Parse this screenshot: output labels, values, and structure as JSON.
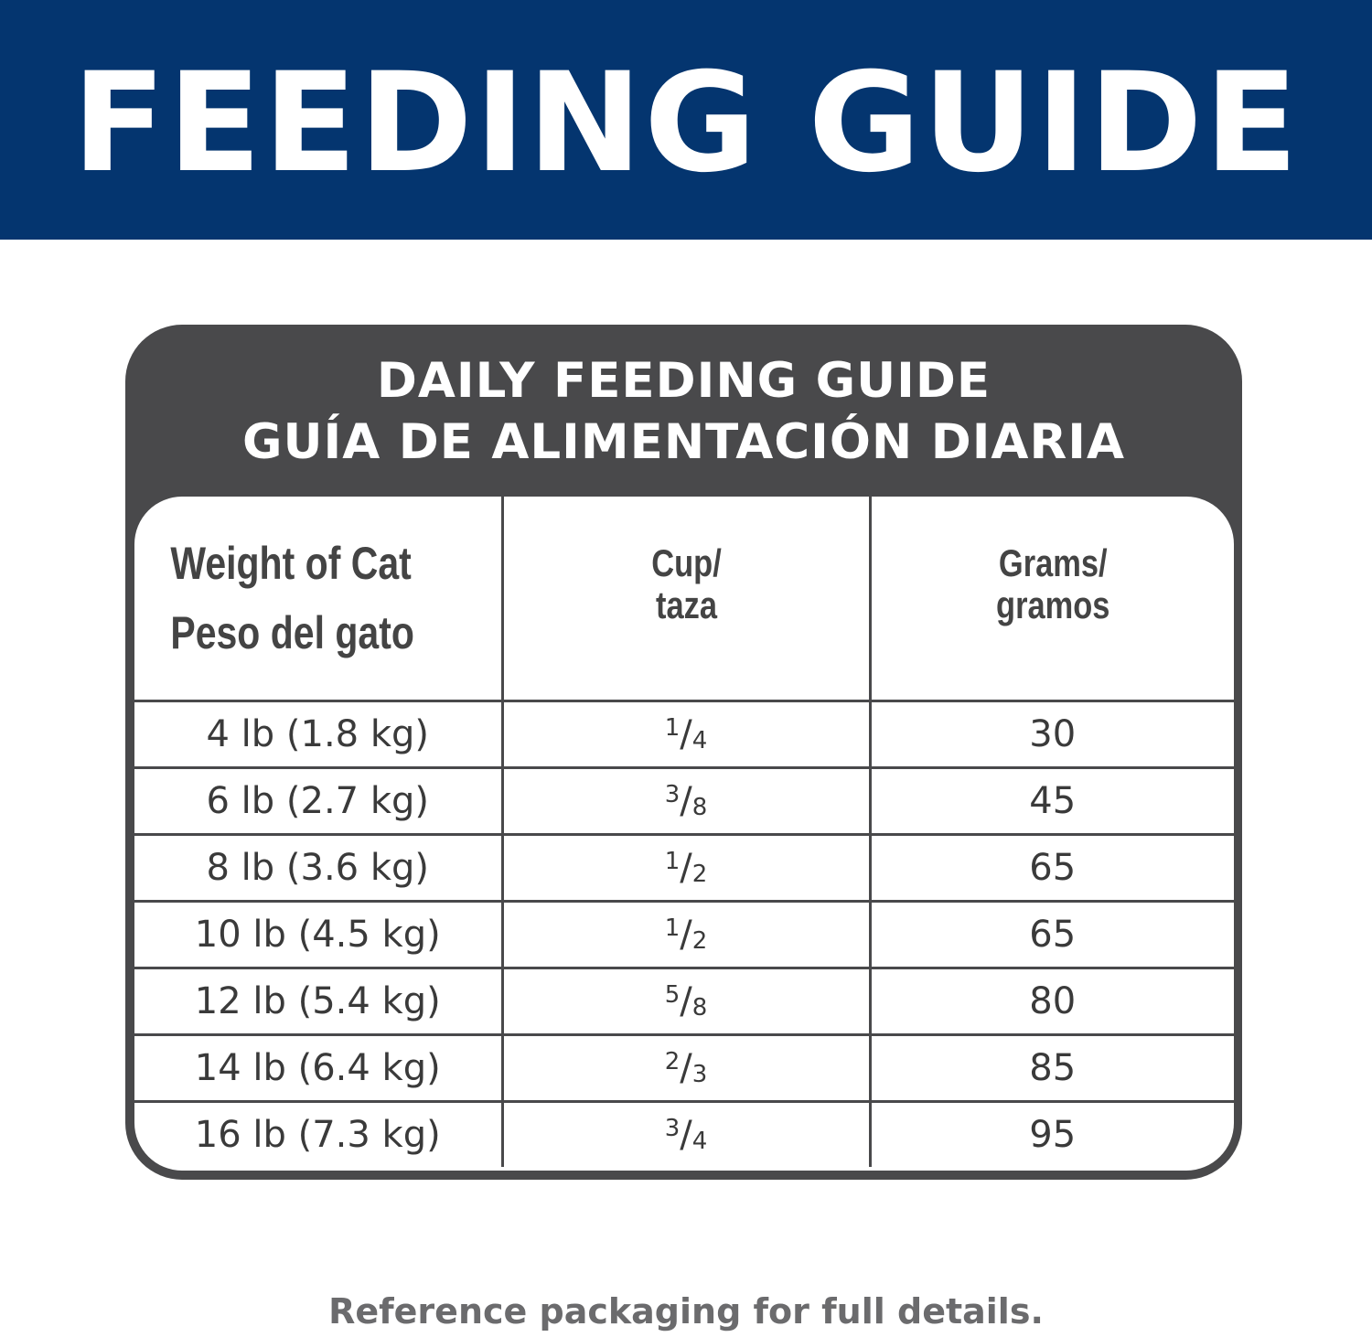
{
  "banner": {
    "title": "FEEDING GUIDE"
  },
  "card": {
    "title_en": "DAILY FEEDING GUIDE",
    "title_es": "GUÍA DE ALIMENTACIÓN DIARIA",
    "columns": [
      {
        "line1": "Weight of Cat",
        "line2": "Peso del gato"
      },
      {
        "line1": "Cup/",
        "line2": "taza"
      },
      {
        "line1": "Grams/",
        "line2": "gramos"
      }
    ],
    "rows": [
      {
        "weight": "4 lb (1.8 kg)",
        "cup_num": "1",
        "cup_den": "4",
        "grams": "30"
      },
      {
        "weight": "6 lb (2.7 kg)",
        "cup_num": "3",
        "cup_den": "8",
        "grams": "45"
      },
      {
        "weight": "8 lb (3.6 kg)",
        "cup_num": "1",
        "cup_den": "2",
        "grams": "65"
      },
      {
        "weight": "10 lb (4.5 kg)",
        "cup_num": "1",
        "cup_den": "2",
        "grams": "65"
      },
      {
        "weight": "12 lb (5.4 kg)",
        "cup_num": "5",
        "cup_den": "8",
        "grams": "80"
      },
      {
        "weight": "14 lb (6.4 kg)",
        "cup_num": "2",
        "cup_den": "3",
        "grams": "85"
      },
      {
        "weight": "16 lb (7.3 kg)",
        "cup_num": "3",
        "cup_den": "4",
        "grams": "95"
      }
    ]
  },
  "footer": {
    "text": "Reference packaging for full details."
  },
  "colors": {
    "banner": "#04356f",
    "card": "#49494b",
    "text": "#3c3c3e"
  }
}
